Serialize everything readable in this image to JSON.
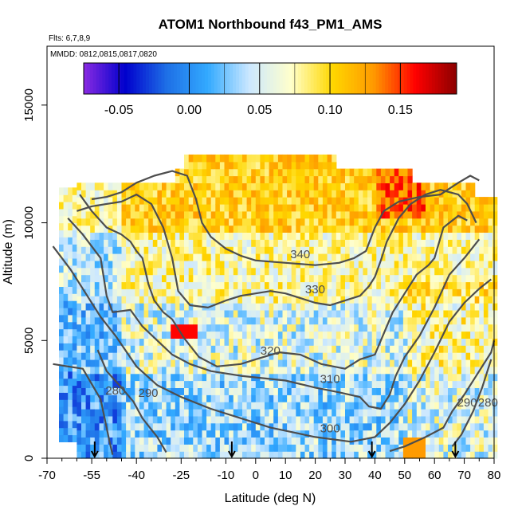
{
  "chart_data": {
    "type": "heatmap",
    "title": "ATOM1 Northbound f43_PM1_AMS",
    "notes": [
      "Flts: 6,7,8,9",
      "MMDD: 0812,0815,0817,0820"
    ],
    "xlabel": "Latitude (deg N)",
    "ylabel": "Altitude (m)",
    "xlim": [
      -70,
      80
    ],
    "ylim": [
      0,
      17500
    ],
    "x_ticks": [
      -70,
      -55,
      -40,
      -25,
      -10,
      0,
      10,
      20,
      30,
      40,
      50,
      60,
      70,
      80
    ],
    "x_tick_labels": [
      "-70",
      "-55",
      "-40",
      "-25",
      "-10",
      "0",
      "10",
      "20",
      "30",
      "40",
      "50",
      "60",
      "70",
      "80"
    ],
    "x_minor_ticks": [
      -65,
      -60,
      -50,
      -45,
      -35,
      -30,
      -20,
      -15,
      -5,
      5,
      15,
      25,
      35,
      45,
      55,
      65,
      75
    ],
    "y_ticks": [
      0,
      5000,
      10000,
      15000
    ],
    "y_tick_labels": [
      "0",
      "5000",
      "10000",
      "15000"
    ],
    "colorbar": {
      "range": [
        -0.075,
        0.19
      ],
      "ticks": [
        -0.05,
        0.0,
        0.05,
        0.1,
        0.15
      ],
      "tick_labels": [
        "-0.05",
        "0.00",
        "0.05",
        "0.10",
        "0.15"
      ],
      "colors": [
        "#8a2be2",
        "#0000cd",
        "#1e6fe6",
        "#33aaff",
        "#cce8ff",
        "#ffffcc",
        "#ffd700",
        "#ff9900",
        "#ff0000",
        "#8b0000"
      ]
    },
    "arrows_lat": [
      -54,
      -8,
      39,
      67
    ],
    "contours": [
      {
        "level": 280,
        "label": "280",
        "points": [
          [
            -68,
            4000
          ],
          [
            -63,
            3900
          ],
          [
            -58,
            3800
          ],
          [
            -52,
            2500
          ],
          [
            -49,
            700
          ],
          [
            -48,
            150
          ]
        ]
      },
      {
        "level": 280,
        "label": "280",
        "points": [
          [
            66,
            500
          ],
          [
            69,
            1000
          ],
          [
            73,
            2000
          ],
          [
            76,
            3000
          ],
          [
            79,
            4200
          ]
        ]
      },
      {
        "level": 290,
        "label": "290",
        "points": [
          [
            -53,
            4600
          ],
          [
            -50,
            3700
          ],
          [
            -45,
            3000
          ],
          [
            -41,
            2400
          ],
          [
            -38,
            1700
          ],
          [
            -33,
            900
          ],
          [
            -30,
            250
          ]
        ]
      },
      {
        "level": 290,
        "label": "290",
        "points": [
          [
            45,
            300
          ],
          [
            50,
            500
          ],
          [
            57,
            900
          ],
          [
            63,
            1300
          ],
          [
            66,
            2000
          ],
          [
            70,
            2700
          ],
          [
            75,
            3700
          ],
          [
            79,
            4500
          ],
          [
            80,
            5000
          ]
        ]
      },
      {
        "level": 300,
        "label": "300",
        "points": [
          [
            -68,
            9000
          ],
          [
            -62,
            8000
          ],
          [
            -57,
            7000
          ],
          [
            -52,
            6000
          ],
          [
            -47,
            5200
          ],
          [
            -40,
            3900
          ],
          [
            -33,
            3100
          ],
          [
            -25,
            2600
          ],
          [
            -15,
            2100
          ],
          [
            -5,
            1700
          ],
          [
            5,
            1300
          ],
          [
            20,
            900
          ],
          [
            32,
            700
          ],
          [
            40,
            900
          ],
          [
            45,
            1500
          ],
          [
            50,
            2300
          ],
          [
            55,
            3300
          ],
          [
            60,
            4500
          ],
          [
            65,
            5800
          ],
          [
            70,
            6600
          ],
          [
            75,
            7200
          ],
          [
            79,
            7600
          ]
        ]
      },
      {
        "level": 310,
        "label": "310",
        "points": [
          [
            -63,
            10200
          ],
          [
            -58,
            9500
          ],
          [
            -52,
            8500
          ],
          [
            -50,
            6900
          ],
          [
            -48,
            6200
          ],
          [
            -42,
            6300
          ],
          [
            -38,
            5600
          ],
          [
            -33,
            5000
          ],
          [
            -28,
            4400
          ],
          [
            -22,
            4000
          ],
          [
            -15,
            3700
          ],
          [
            -5,
            3500
          ],
          [
            10,
            3300
          ],
          [
            20,
            3000
          ],
          [
            28,
            2800
          ],
          [
            35,
            2600
          ],
          [
            38,
            2200
          ],
          [
            42,
            2100
          ],
          [
            45,
            2700
          ],
          [
            47,
            3500
          ],
          [
            50,
            4300
          ],
          [
            55,
            5200
          ],
          [
            60,
            6400
          ],
          [
            65,
            7800
          ],
          [
            70,
            8500
          ],
          [
            75,
            9300
          ]
        ]
      },
      {
        "level": 320,
        "label": "320",
        "points": [
          [
            -59,
            11200
          ],
          [
            -55,
            10500
          ],
          [
            -50,
            9800
          ],
          [
            -45,
            9500
          ],
          [
            -42,
            9200
          ],
          [
            -40,
            8800
          ],
          [
            -38,
            8500
          ],
          [
            -36,
            7400
          ],
          [
            -34,
            6700
          ],
          [
            -31,
            6200
          ],
          [
            -28,
            5900
          ],
          [
            -24,
            5100
          ],
          [
            -19,
            4300
          ],
          [
            -13,
            3900
          ],
          [
            -5,
            4000
          ],
          [
            0,
            4200
          ],
          [
            8,
            4500
          ],
          [
            15,
            4400
          ],
          [
            22,
            4000
          ],
          [
            30,
            3800
          ],
          [
            35,
            4200
          ],
          [
            40,
            4400
          ],
          [
            43,
            5300
          ],
          [
            46,
            6200
          ],
          [
            50,
            7000
          ],
          [
            54,
            7800
          ],
          [
            58,
            8200
          ],
          [
            60,
            8500
          ],
          [
            63,
            9800
          ],
          [
            68,
            10300
          ],
          [
            71,
            10100
          ]
        ]
      },
      {
        "level": 330,
        "label": "330",
        "points": [
          [
            -60,
            10500
          ],
          [
            -55,
            10700
          ],
          [
            -50,
            10800
          ],
          [
            -45,
            10900
          ],
          [
            -40,
            11200
          ],
          [
            -35,
            10800
          ],
          [
            -31,
            9800
          ],
          [
            -28,
            8500
          ],
          [
            -26,
            7100
          ],
          [
            -22,
            6500
          ],
          [
            -16,
            6400
          ],
          [
            -10,
            6700
          ],
          [
            -5,
            6900
          ],
          [
            0,
            7000
          ],
          [
            5,
            7100
          ],
          [
            10,
            7000
          ],
          [
            15,
            6800
          ],
          [
            20,
            6600
          ],
          [
            25,
            6500
          ],
          [
            30,
            6700
          ],
          [
            35,
            6900
          ],
          [
            38,
            7300
          ],
          [
            40,
            7700
          ],
          [
            42,
            8400
          ],
          [
            44,
            9200
          ],
          [
            48,
            10200
          ],
          [
            52,
            10800
          ],
          [
            57,
            11200
          ],
          [
            62,
            11400
          ],
          [
            68,
            11200
          ],
          [
            71,
            10800
          ],
          [
            74,
            10000
          ]
        ]
      },
      {
        "level": 340,
        "label": "340",
        "points": [
          [
            -55,
            11000
          ],
          [
            -50,
            11100
          ],
          [
            -45,
            11300
          ],
          [
            -40,
            11700
          ],
          [
            -34,
            12000
          ],
          [
            -28,
            12200
          ],
          [
            -23,
            12000
          ],
          [
            -20,
            11000
          ],
          [
            -18,
            10000
          ],
          [
            -15,
            9400
          ],
          [
            -10,
            8900
          ],
          [
            -5,
            8600
          ],
          [
            0,
            8400
          ],
          [
            10,
            8300
          ],
          [
            20,
            8200
          ],
          [
            28,
            8300
          ],
          [
            33,
            8500
          ],
          [
            37,
            8800
          ],
          [
            40,
            9800
          ],
          [
            43,
            10500
          ],
          [
            48,
            10900
          ],
          [
            55,
            11100
          ],
          [
            62,
            11200
          ],
          [
            68,
            11700
          ],
          [
            72,
            12000
          ],
          [
            75,
            11800
          ]
        ]
      }
    ]
  }
}
